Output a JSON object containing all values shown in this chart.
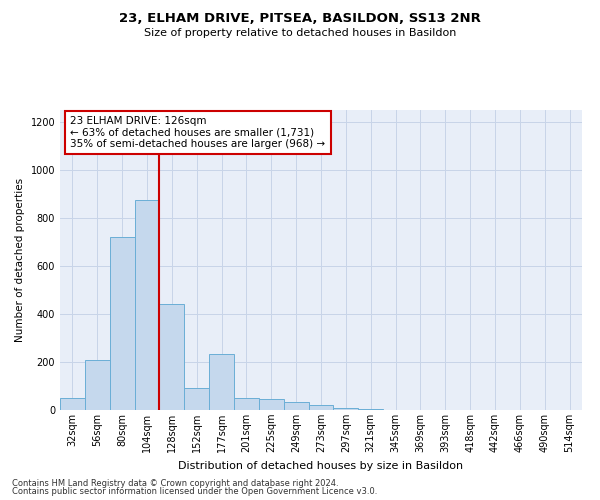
{
  "title": "23, ELHAM DRIVE, PITSEA, BASILDON, SS13 2NR",
  "subtitle": "Size of property relative to detached houses in Basildon",
  "xlabel": "Distribution of detached houses by size in Basildon",
  "ylabel": "Number of detached properties",
  "categories": [
    "32sqm",
    "56sqm",
    "80sqm",
    "104sqm",
    "128sqm",
    "152sqm",
    "177sqm",
    "201sqm",
    "225sqm",
    "249sqm",
    "273sqm",
    "297sqm",
    "321sqm",
    "345sqm",
    "369sqm",
    "393sqm",
    "418sqm",
    "442sqm",
    "466sqm",
    "490sqm",
    "514sqm"
  ],
  "values": [
    50,
    210,
    720,
    875,
    440,
    90,
    235,
    50,
    45,
    35,
    20,
    10,
    5,
    0,
    0,
    0,
    0,
    0,
    0,
    0,
    0
  ],
  "bar_color": "#c5d8ed",
  "bar_edge_color": "#6aaed6",
  "vline_x_index": 4,
  "annotation_text_line1": "23 ELHAM DRIVE: 126sqm",
  "annotation_text_line2": "← 63% of detached houses are smaller (1,731)",
  "annotation_text_line3": "35% of semi-detached houses are larger (968) →",
  "annotation_box_facecolor": "#ffffff",
  "annotation_box_edgecolor": "#cc0000",
  "vline_color": "#cc0000",
  "grid_color": "#c8d4e8",
  "background_color": "#e8eef8",
  "footer_line1": "Contains HM Land Registry data © Crown copyright and database right 2024.",
  "footer_line2": "Contains public sector information licensed under the Open Government Licence v3.0.",
  "ylim": [
    0,
    1250
  ],
  "yticks": [
    0,
    200,
    400,
    600,
    800,
    1000,
    1200
  ],
  "title_fontsize": 9.5,
  "subtitle_fontsize": 8.0,
  "ylabel_fontsize": 7.5,
  "xlabel_fontsize": 8.0,
  "tick_fontsize": 7.0,
  "annotation_fontsize": 7.5,
  "footer_fontsize": 6.0
}
